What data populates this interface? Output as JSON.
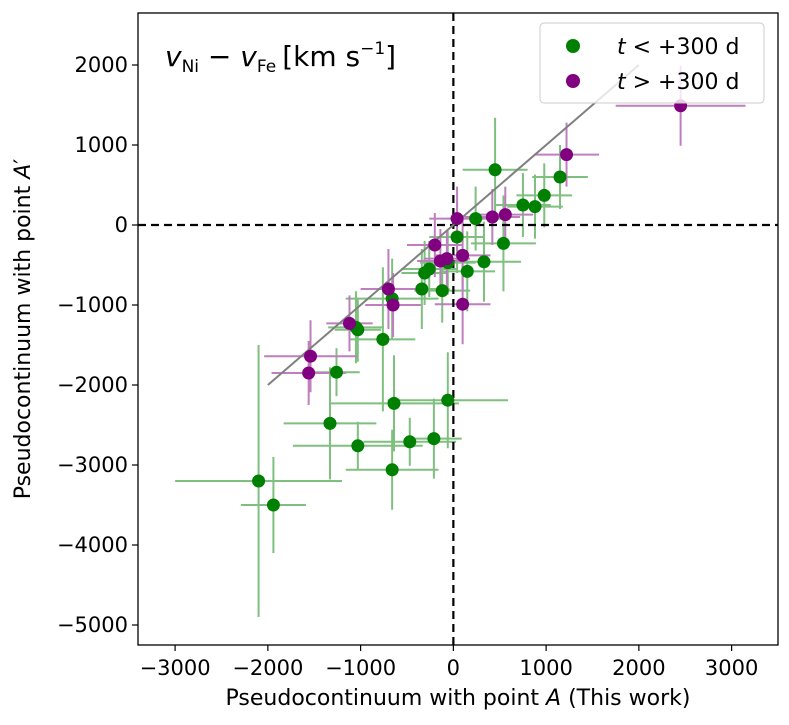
{
  "chart_data": {
    "type": "scatter",
    "title": "v_Ni − v_Fe [km s⁻¹]",
    "title_parts": {
      "v": "v",
      "sub1": "Ni",
      "minus": " − ",
      "sub2": "Fe",
      "units": "[km s",
      "exp": "−1",
      "close": "]"
    },
    "xlabel": "Pseudocontinuum with point A (This work)",
    "xlabel_parts": {
      "pre": "Pseudocontinuum with point ",
      "var": "A",
      "post": " (This work)"
    },
    "ylabel": "Pseudocontinuum with point A′",
    "ylabel_parts": {
      "pre": "Pseudocontinuum with point ",
      "var": "A",
      "prime": "′"
    },
    "xlim": [
      -3400,
      3500
    ],
    "ylim": [
      -5250,
      2650
    ],
    "xticks": [
      -3000,
      -2000,
      -1000,
      0,
      1000,
      2000,
      3000
    ],
    "yticks": [
      -5000,
      -4000,
      -3000,
      -2000,
      -1000,
      0,
      1000,
      2000
    ],
    "xtick_labels": [
      "−3000",
      "−2000",
      "−1000",
      "0",
      "1000",
      "2000",
      "3000"
    ],
    "ytick_labels": [
      "−5000",
      "−4000",
      "−3000",
      "−2000",
      "−1000",
      "0",
      "1000",
      "2000"
    ],
    "reference_lines": {
      "vertical_x": 0,
      "horizontal_y": 0,
      "style": "dashed",
      "color": "#000000"
    },
    "fit_line": {
      "x": [
        -2000,
        2000
      ],
      "y": [
        -2000,
        2000
      ],
      "color": "#808080"
    },
    "legend": {
      "position": "top-right",
      "entries": [
        {
          "series": "early",
          "t": "t",
          "text": " < +300 d",
          "color": "#008000"
        },
        {
          "series": "late",
          "t": "t",
          "text": " > +300 d",
          "color": "#800080"
        }
      ]
    },
    "series": [
      {
        "name": "t < +300 d",
        "key": "early",
        "color": "#008000",
        "errcolor": "#7fbf7f",
        "points": [
          {
            "x": -2100,
            "y": -3200,
            "xerr": 900,
            "yerr": 1700
          },
          {
            "x": -1940,
            "y": -3500,
            "xerr": 350,
            "yerr": 600
          },
          {
            "x": -1330,
            "y": -2480,
            "xerr": 500,
            "yerr": 700
          },
          {
            "x": -1260,
            "y": -1840,
            "xerr": 250,
            "yerr": 300
          },
          {
            "x": -1050,
            "y": -1280,
            "xerr": 300,
            "yerr": 450
          },
          {
            "x": -1030,
            "y": -1310,
            "xerr": 250,
            "yerr": 400
          },
          {
            "x": -1030,
            "y": -2760,
            "xerr": 700,
            "yerr": 300
          },
          {
            "x": -760,
            "y": -1430,
            "xerr": 350,
            "yerr": 900
          },
          {
            "x": -660,
            "y": -920,
            "xerr": 500,
            "yerr": 500
          },
          {
            "x": -640,
            "y": -2230,
            "xerr": 700,
            "yerr": 600
          },
          {
            "x": -660,
            "y": -3060,
            "xerr": 500,
            "yerr": 500
          },
          {
            "x": -470,
            "y": -2710,
            "xerr": 500,
            "yerr": 300
          },
          {
            "x": -340,
            "y": -800,
            "xerr": 300,
            "yerr": 500
          },
          {
            "x": -310,
            "y": -600,
            "xerr": 250,
            "yerr": 400
          },
          {
            "x": -260,
            "y": -550,
            "xerr": 300,
            "yerr": 350
          },
          {
            "x": -210,
            "y": -2670,
            "xerr": 300,
            "yerr": 500
          },
          {
            "x": -120,
            "y": -820,
            "xerr": 300,
            "yerr": 400
          },
          {
            "x": -60,
            "y": -470,
            "xerr": 300,
            "yerr": 400
          },
          {
            "x": -60,
            "y": -2190,
            "xerr": 650,
            "yerr": 600
          },
          {
            "x": 40,
            "y": -150,
            "xerr": 300,
            "yerr": 450
          },
          {
            "x": 150,
            "y": -580,
            "xerr": 300,
            "yerr": 500
          },
          {
            "x": 240,
            "y": 80,
            "xerr": 300,
            "yerr": 400
          },
          {
            "x": 330,
            "y": -460,
            "xerr": 400,
            "yerr": 500
          },
          {
            "x": 450,
            "y": 690,
            "xerr": 350,
            "yerr": 650
          },
          {
            "x": 540,
            "y": -230,
            "xerr": 350,
            "yerr": 600
          },
          {
            "x": 750,
            "y": 250,
            "xerr": 300,
            "yerr": 400
          },
          {
            "x": 880,
            "y": 230,
            "xerr": 300,
            "yerr": 400
          },
          {
            "x": 980,
            "y": 370,
            "xerr": 300,
            "yerr": 400
          },
          {
            "x": 1150,
            "y": 600,
            "xerr": 300,
            "yerr": 400
          }
        ]
      },
      {
        "name": "t > +300 d",
        "key": "late",
        "color": "#800080",
        "errcolor": "#bf7fbf",
        "points": [
          {
            "x": -1560,
            "y": -1850,
            "xerr": 400,
            "yerr": 400
          },
          {
            "x": -1540,
            "y": -1640,
            "xerr": 500,
            "yerr": 450
          },
          {
            "x": -1120,
            "y": -1230,
            "xerr": 250,
            "yerr": 350
          },
          {
            "x": -700,
            "y": -800,
            "xerr": 300,
            "yerr": 500
          },
          {
            "x": -650,
            "y": -1000,
            "xerr": 300,
            "yerr": 400
          },
          {
            "x": -200,
            "y": -250,
            "xerr": 300,
            "yerr": 400
          },
          {
            "x": -140,
            "y": -450,
            "xerr": 250,
            "yerr": 400
          },
          {
            "x": -70,
            "y": -420,
            "xerr": 250,
            "yerr": 350
          },
          {
            "x": 40,
            "y": 80,
            "xerr": 300,
            "yerr": 400
          },
          {
            "x": 100,
            "y": -380,
            "xerr": 300,
            "yerr": 450
          },
          {
            "x": 100,
            "y": -990,
            "xerr": 300,
            "yerr": 500
          },
          {
            "x": 420,
            "y": 100,
            "xerr": 300,
            "yerr": 350
          },
          {
            "x": 560,
            "y": 130,
            "xerr": 300,
            "yerr": 350
          },
          {
            "x": 1220,
            "y": 880,
            "xerr": 350,
            "yerr": 400
          },
          {
            "x": 2450,
            "y": 1490,
            "xerr": 700,
            "yerr": 500
          }
        ]
      }
    ]
  }
}
